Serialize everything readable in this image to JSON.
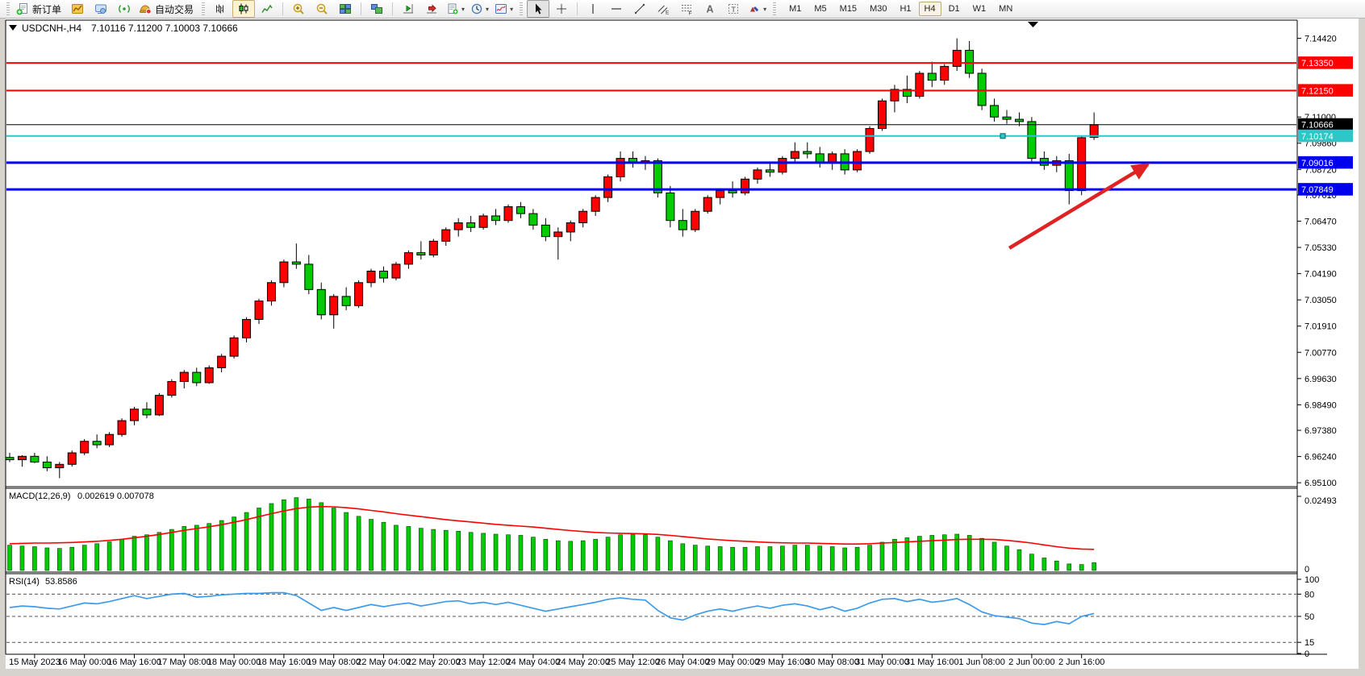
{
  "app": {
    "toolbar": {
      "new_order_label": "新订单",
      "autotrading_label": "自动交易",
      "timeframes": [
        "M1",
        "M5",
        "M15",
        "M30",
        "H1",
        "H4",
        "D1",
        "W1",
        "MN"
      ],
      "active_timeframe": "H4",
      "chat_badge": "1",
      "items": [
        {
          "type": "grip"
        },
        {
          "type": "button",
          "name": "new-order",
          "icon": "new-order",
          "label": "新订单"
        },
        {
          "type": "button",
          "name": "new-chart",
          "icon": "new-chart"
        },
        {
          "type": "button",
          "name": "profiles",
          "icon": "profile"
        },
        {
          "type": "button",
          "name": "signals",
          "icon": "signal"
        },
        {
          "type": "button",
          "name": "auto-trading",
          "icon": "autotrade",
          "label": "自动交易"
        },
        {
          "type": "grip"
        },
        {
          "type": "button",
          "name": "bar-chart-mode",
          "icon": "chart-bars"
        },
        {
          "type": "button",
          "name": "candlestick-mode",
          "icon": "chart-candles",
          "active": true
        },
        {
          "type": "button",
          "name": "line-chart-mode",
          "icon": "chart-line"
        },
        {
          "type": "sep"
        },
        {
          "type": "button",
          "name": "zoom-in",
          "icon": "zoom-in"
        },
        {
          "type": "button",
          "name": "zoom-out",
          "icon": "zoom-out"
        },
        {
          "type": "button",
          "name": "tile-windows",
          "icon": "tile-windows"
        },
        {
          "type": "sep"
        },
        {
          "type": "button",
          "name": "cascade-windows",
          "icon": "tile-cascade"
        },
        {
          "type": "sep"
        },
        {
          "type": "button",
          "name": "chart-shift",
          "icon": "chart-shift"
        },
        {
          "type": "button",
          "name": "auto-scroll",
          "icon": "auto-scroll"
        },
        {
          "type": "button",
          "name": "templates",
          "icon": "templates",
          "dropdown": true
        },
        {
          "type": "button",
          "name": "periods",
          "icon": "periods",
          "dropdown": true
        },
        {
          "type": "button",
          "name": "indicators",
          "icon": "indicators",
          "dropdown": true
        },
        {
          "type": "grip"
        },
        {
          "type": "button",
          "name": "cursor",
          "icon": "cursor",
          "pressed": true
        },
        {
          "type": "button",
          "name": "crosshair",
          "icon": "crosshair"
        },
        {
          "type": "sep"
        },
        {
          "type": "button",
          "name": "vertical-line",
          "icon": "vline"
        },
        {
          "type": "button",
          "name": "horizontal-line",
          "icon": "hline"
        },
        {
          "type": "button",
          "name": "trendline",
          "icon": "trendline"
        },
        {
          "type": "button",
          "name": "equidistant-channel",
          "icon": "channel"
        },
        {
          "type": "button",
          "name": "fibonacci",
          "icon": "fibonacci"
        },
        {
          "type": "button",
          "name": "text",
          "icon": "text"
        },
        {
          "type": "button",
          "name": "text-label",
          "icon": "text-label"
        },
        {
          "type": "button",
          "name": "arrows",
          "icon": "shapes",
          "dropdown": true
        },
        {
          "type": "grip"
        },
        {
          "type": "timeframes"
        }
      ]
    }
  },
  "chart": {
    "symbol_title": "USDCNH-,H4",
    "ohlc_line": "7.10116 7.11200 7.10003 7.10666",
    "open": "7.10116",
    "high": "7.11200",
    "low": "7.10003",
    "close": "7.10666"
  },
  "chart_data": [
    {
      "type": "candlestick",
      "title": "USDCNH-,H4",
      "symbol": "USDCNH-",
      "timeframe": "H4",
      "up_color": "#ff0000",
      "down_color": "#00cc00",
      "outline_color": "#000000",
      "ylim": [
        6.95,
        7.15
      ],
      "y_tick_labels": [
        "7.14420",
        "7.11000",
        "7.09860",
        "7.08720",
        "7.07610",
        "7.06470",
        "7.05330",
        "7.04190",
        "7.03050",
        "7.01910",
        "7.00770",
        "6.99630",
        "6.98490",
        "6.97380",
        "6.96240",
        "6.95100"
      ],
      "x_labels": [
        "15 May 2023",
        "16 May 00:00",
        "16 May 16:00",
        "17 May 08:00",
        "18 May 00:00",
        "18 May 16:00",
        "19 May 08:00",
        "22 May 04:00",
        "22 May 20:00",
        "23 May 12:00",
        "24 May 04:00",
        "24 May 20:00",
        "25 May 12:00",
        "26 May 04:00",
        "29 May 00:00",
        "29 May 16:00",
        "30 May 08:00",
        "31 May 00:00",
        "31 May 16:00",
        "1 Jun 08:00",
        "2 Jun 00:00",
        "2 Jun 16:00"
      ],
      "candles": [
        [
          6.962,
          6.964,
          6.96,
          6.961
        ],
        [
          6.961,
          6.963,
          6.958,
          6.9625
        ],
        [
          6.9625,
          6.964,
          6.9595,
          6.96
        ],
        [
          6.96,
          6.9625,
          6.956,
          6.9575
        ],
        [
          6.9575,
          6.96,
          6.953,
          6.959
        ],
        [
          6.959,
          6.965,
          6.958,
          6.964
        ],
        [
          6.964,
          6.97,
          6.963,
          6.969
        ],
        [
          6.969,
          6.972,
          6.966,
          6.9675
        ],
        [
          6.9675,
          6.973,
          6.9665,
          6.972
        ],
        [
          6.972,
          6.979,
          6.971,
          6.978
        ],
        [
          6.978,
          6.984,
          6.976,
          6.983
        ],
        [
          6.983,
          6.986,
          6.979,
          6.9805
        ],
        [
          6.9805,
          6.99,
          6.98,
          6.989
        ],
        [
          6.989,
          6.996,
          6.988,
          6.995
        ],
        [
          6.995,
          7.0,
          6.992,
          6.999
        ],
        [
          6.999,
          7.001,
          6.993,
          6.9945
        ],
        [
          6.9945,
          7.002,
          6.994,
          7.001
        ],
        [
          7.001,
          7.007,
          6.999,
          7.006
        ],
        [
          7.006,
          7.015,
          7.005,
          7.014
        ],
        [
          7.014,
          7.023,
          7.012,
          7.022
        ],
        [
          7.022,
          7.031,
          7.02,
          7.03
        ],
        [
          7.03,
          7.039,
          7.028,
          7.038
        ],
        [
          7.038,
          7.048,
          7.036,
          7.047
        ],
        [
          7.047,
          7.055,
          7.044,
          7.046
        ],
        [
          7.046,
          7.05,
          7.033,
          7.035
        ],
        [
          7.035,
          7.038,
          7.022,
          7.024
        ],
        [
          7.024,
          7.033,
          7.018,
          7.032
        ],
        [
          7.032,
          7.036,
          7.026,
          7.028
        ],
        [
          7.028,
          7.039,
          7.027,
          7.038
        ],
        [
          7.038,
          7.044,
          7.036,
          7.043
        ],
        [
          7.043,
          7.045,
          7.038,
          7.04
        ],
        [
          7.04,
          7.047,
          7.039,
          7.046
        ],
        [
          7.046,
          7.052,
          7.044,
          7.051
        ],
        [
          7.051,
          7.056,
          7.048,
          7.05
        ],
        [
          7.05,
          7.057,
          7.049,
          7.056
        ],
        [
          7.056,
          7.062,
          7.054,
          7.061
        ],
        [
          7.061,
          7.066,
          7.058,
          7.064
        ],
        [
          7.064,
          7.067,
          7.06,
          7.062
        ],
        [
          7.062,
          7.068,
          7.061,
          7.067
        ],
        [
          7.067,
          7.07,
          7.063,
          7.065
        ],
        [
          7.065,
          7.072,
          7.064,
          7.071
        ],
        [
          7.071,
          7.073,
          7.066,
          7.068
        ],
        [
          7.068,
          7.07,
          7.061,
          7.063
        ],
        [
          7.063,
          7.066,
          7.056,
          7.058
        ],
        [
          7.058,
          7.062,
          7.048,
          7.06
        ],
        [
          7.06,
          7.065,
          7.056,
          7.064
        ],
        [
          7.064,
          7.07,
          7.062,
          7.069
        ],
        [
          7.069,
          7.076,
          7.067,
          7.075
        ],
        [
          7.075,
          7.085,
          7.073,
          7.084
        ],
        [
          7.084,
          7.095,
          7.082,
          7.092
        ],
        [
          7.092,
          7.095,
          7.088,
          7.09
        ],
        [
          7.09,
          7.093,
          7.087,
          7.091
        ],
        [
          7.091,
          7.092,
          7.075,
          7.077
        ],
        [
          7.077,
          7.08,
          7.062,
          7.065
        ],
        [
          7.065,
          7.07,
          7.058,
          7.061
        ],
        [
          7.061,
          7.07,
          7.06,
          7.069
        ],
        [
          7.069,
          7.076,
          7.068,
          7.075
        ],
        [
          7.075,
          7.079,
          7.072,
          7.078
        ],
        [
          7.078,
          7.082,
          7.075,
          7.077
        ],
        [
          7.077,
          7.084,
          7.076,
          7.083
        ],
        [
          7.083,
          7.088,
          7.081,
          7.087
        ],
        [
          7.087,
          7.09,
          7.084,
          7.086
        ],
        [
          7.086,
          7.093,
          7.085,
          7.092
        ],
        [
          7.092,
          7.099,
          7.09,
          7.095
        ],
        [
          7.095,
          7.099,
          7.092,
          7.094
        ],
        [
          7.094,
          7.097,
          7.088,
          7.09
        ],
        [
          7.09,
          7.095,
          7.087,
          7.094
        ],
        [
          7.094,
          7.096,
          7.085,
          7.087
        ],
        [
          7.087,
          7.096,
          7.086,
          7.095
        ],
        [
          7.095,
          7.106,
          7.094,
          7.105
        ],
        [
          7.105,
          7.118,
          7.104,
          7.117
        ],
        [
          7.117,
          7.124,
          7.112,
          7.122
        ],
        [
          7.122,
          7.128,
          7.116,
          7.119
        ],
        [
          7.119,
          7.13,
          7.118,
          7.129
        ],
        [
          7.129,
          7.134,
          7.123,
          7.126
        ],
        [
          7.126,
          7.133,
          7.124,
          7.132
        ],
        [
          7.132,
          7.1442,
          7.13,
          7.139
        ],
        [
          7.139,
          7.143,
          7.127,
          7.129
        ],
        [
          7.129,
          7.131,
          7.113,
          7.115
        ],
        [
          7.115,
          7.118,
          7.108,
          7.11
        ],
        [
          7.11,
          7.113,
          7.107,
          7.109
        ],
        [
          7.109,
          7.112,
          7.106,
          7.108
        ],
        [
          7.108,
          7.11,
          7.09,
          7.092
        ],
        [
          7.092,
          7.095,
          7.087,
          7.089
        ],
        [
          7.089,
          7.093,
          7.086,
          7.091
        ],
        [
          7.091,
          7.094,
          7.072,
          7.078
        ],
        [
          7.078,
          7.102,
          7.076,
          7.101
        ],
        [
          7.10116,
          7.112,
          7.10003,
          7.10666
        ]
      ],
      "hlines": [
        {
          "price": 7.1335,
          "label": "7.13350",
          "color": "#ff0000",
          "width": 2
        },
        {
          "price": 7.1215,
          "label": "7.12150",
          "color": "#ff0000",
          "width": 2
        },
        {
          "price": 7.10666,
          "label": "7.10666",
          "color": "#000000",
          "width": 1
        },
        {
          "price": 7.10174,
          "label": "7.10174",
          "color": "#2ec6c6",
          "width": 2,
          "handle": true
        },
        {
          "price": 7.09016,
          "label": "7.09016",
          "color": "#0000ee",
          "width": 3
        },
        {
          "price": 7.07849,
          "label": "7.07849",
          "color": "#0000ee",
          "width": 3
        }
      ],
      "arrow": {
        "from_bar": 80.2,
        "from_price": 7.053,
        "to_bar": 91.3,
        "to_price": 7.0893,
        "color": "#e02222"
      }
    },
    {
      "type": "bar",
      "name": "MACD",
      "label": "MACD(12,26,9)",
      "values_label": "0.002619 0.007078",
      "macd_value": 0.002619,
      "signal_value": 0.007078,
      "ylim": [
        0,
        0.02493
      ],
      "scale_top_label": "0.02493",
      "scale_bottom_label": "0",
      "hist_color": "#00cc00",
      "signal_color": "#ff0000",
      "histogram": [
        0.0085,
        0.0082,
        0.008,
        0.0076,
        0.0074,
        0.0078,
        0.0085,
        0.009,
        0.0096,
        0.0105,
        0.0115,
        0.012,
        0.0128,
        0.0138,
        0.0148,
        0.0152,
        0.0158,
        0.0168,
        0.018,
        0.0195,
        0.021,
        0.0225,
        0.0238,
        0.0245,
        0.024,
        0.0228,
        0.021,
        0.0195,
        0.0182,
        0.0172,
        0.0162,
        0.0152,
        0.0148,
        0.0142,
        0.0138,
        0.0135,
        0.0132,
        0.0128,
        0.0125,
        0.0122,
        0.012,
        0.0118,
        0.0112,
        0.0105,
        0.01,
        0.0098,
        0.01,
        0.0105,
        0.0112,
        0.012,
        0.0122,
        0.012,
        0.0112,
        0.01,
        0.009,
        0.0085,
        0.0082,
        0.008,
        0.0078,
        0.0078,
        0.008,
        0.008,
        0.0082,
        0.0085,
        0.0085,
        0.0082,
        0.008,
        0.0076,
        0.0078,
        0.0085,
        0.0095,
        0.0105,
        0.011,
        0.0115,
        0.0118,
        0.012,
        0.0122,
        0.0118,
        0.0108,
        0.0095,
        0.0082,
        0.007,
        0.0055,
        0.0042,
        0.0032,
        0.0022,
        0.002,
        0.0026
      ],
      "signal_line": [
        0.009,
        0.0091,
        0.0092,
        0.0092,
        0.0093,
        0.0094,
        0.0096,
        0.0098,
        0.0101,
        0.0105,
        0.011,
        0.0115,
        0.0121,
        0.0128,
        0.0135,
        0.0141,
        0.0147,
        0.0154,
        0.0162,
        0.0171,
        0.0181,
        0.0191,
        0.02,
        0.0208,
        0.0213,
        0.0215,
        0.0214,
        0.0211,
        0.0207,
        0.0202,
        0.0197,
        0.0191,
        0.0186,
        0.0181,
        0.0176,
        0.0171,
        0.0167,
        0.0163,
        0.0159,
        0.0155,
        0.0152,
        0.0149,
        0.0146,
        0.0142,
        0.0138,
        0.0134,
        0.0131,
        0.0128,
        0.0126,
        0.0125,
        0.0124,
        0.0123,
        0.0121,
        0.0118,
        0.0114,
        0.011,
        0.0106,
        0.0103,
        0.01,
        0.0098,
        0.0096,
        0.0094,
        0.0093,
        0.0092,
        0.0092,
        0.0091,
        0.009,
        0.0089,
        0.0089,
        0.009,
        0.0092,
        0.0094,
        0.0096,
        0.0098,
        0.01,
        0.0102,
        0.0104,
        0.0105,
        0.0105,
        0.0104,
        0.0101,
        0.0097,
        0.0092,
        0.0086,
        0.008,
        0.0075,
        0.0072,
        0.0071
      ]
    },
    {
      "type": "line",
      "name": "RSI",
      "label": "RSI(14)",
      "value_label": "53.8586",
      "value": 53.8586,
      "ylim": [
        0,
        100
      ],
      "levels": [
        80,
        50,
        15
      ],
      "scale_labels": [
        "100",
        "80",
        "50",
        "15",
        "0"
      ],
      "line_color": "#3d9be9",
      "values": [
        62,
        64,
        63,
        61,
        60,
        64,
        68,
        67,
        70,
        74,
        78,
        74,
        77,
        80,
        81,
        76,
        77,
        79,
        80,
        81,
        81,
        82,
        82,
        78,
        68,
        58,
        62,
        58,
        62,
        66,
        63,
        66,
        68,
        64,
        67,
        70,
        71,
        67,
        69,
        66,
        69,
        65,
        61,
        57,
        60,
        63,
        66,
        69,
        73,
        75,
        73,
        72,
        58,
        48,
        45,
        52,
        57,
        60,
        57,
        61,
        64,
        61,
        65,
        67,
        64,
        59,
        63,
        57,
        61,
        68,
        73,
        74,
        70,
        73,
        69,
        71,
        74,
        66,
        56,
        51,
        49,
        47,
        41,
        39,
        43,
        40,
        50,
        53.86
      ]
    }
  ]
}
